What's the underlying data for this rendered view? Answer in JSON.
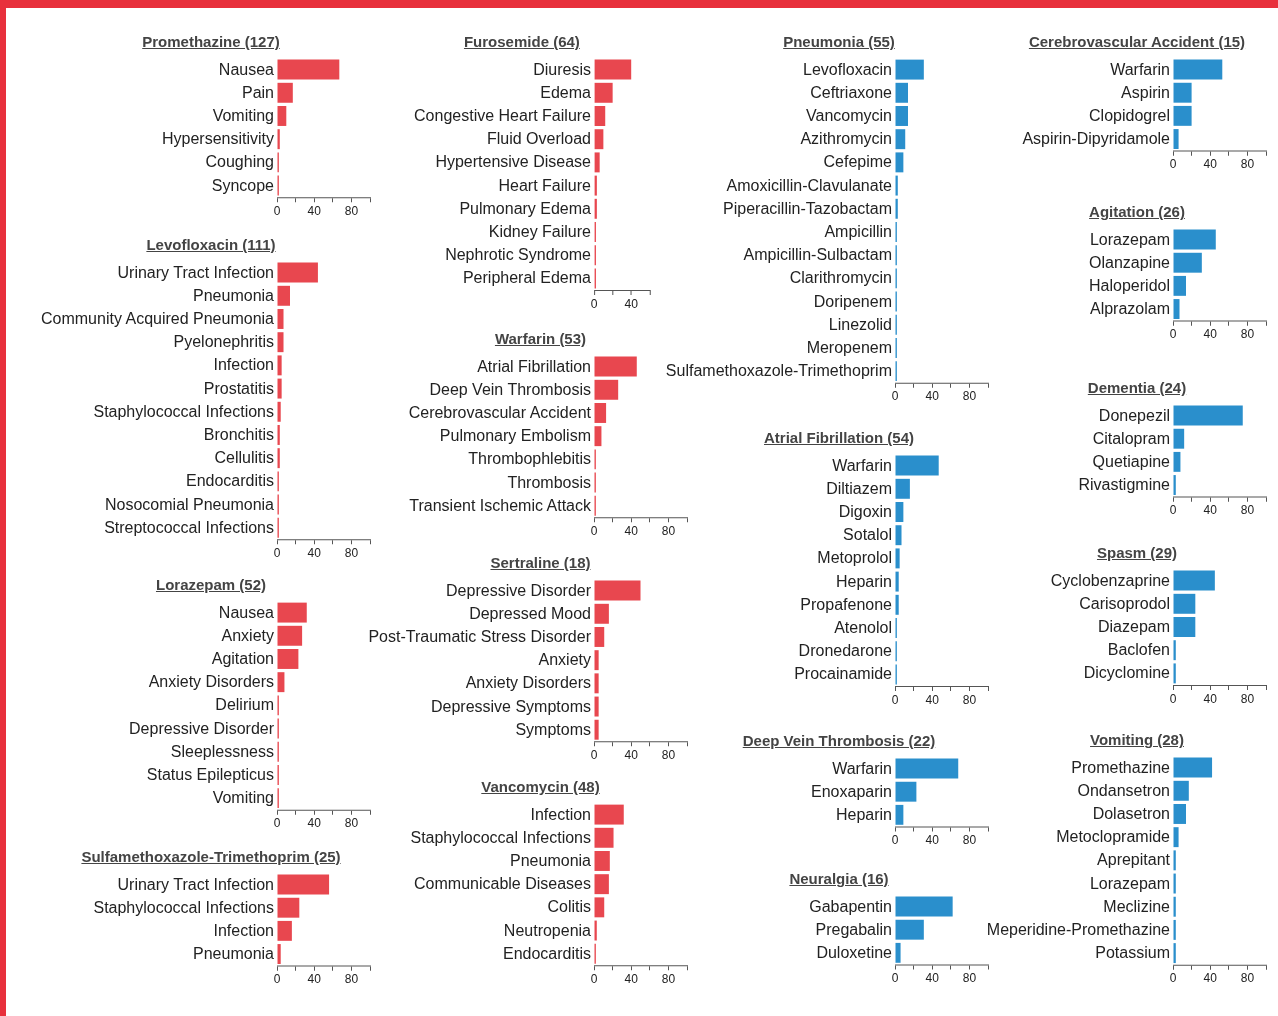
{
  "chart_data": [
    {
      "type": "bar",
      "orientation": "horizontal",
      "title": "Promethazine (127)",
      "categories": [
        "Nausea",
        "Pain",
        "Vomiting",
        "Hypersensitivity",
        "Coughing",
        "Syncope"
      ],
      "values": [
        67,
        17,
        10,
        3,
        2,
        2
      ],
      "color": "#e8474f",
      "xlim": [
        0,
        100
      ],
      "xticks": [
        0,
        {
          "value": 20,
          "label": null
        },
        40,
        {
          "value": 60,
          "label": null
        },
        80,
        {
          "value": 100,
          "label": null
        }
      ]
    },
    {
      "type": "bar",
      "orientation": "horizontal",
      "title": "Levofloxacin (111)",
      "categories": [
        "Urinary Tract Infection",
        "Pneumonia",
        "Community Acquired Pneumonia",
        "Pyelonephritis",
        "Infection",
        "Prostatitis",
        "Staphylococcal Infections",
        "Bronchitis",
        "Cellulitis",
        "Endocarditis",
        "Nosocomial Pneumonia",
        "Streptococcal Infections"
      ],
      "values": [
        44,
        14,
        7,
        7,
        5,
        5,
        4,
        3,
        3,
        2,
        2,
        2
      ],
      "color": "#e8474f",
      "xlim": [
        0,
        100
      ],
      "xticks": [
        0,
        {
          "value": 20,
          "label": null
        },
        40,
        {
          "value": 60,
          "label": null
        },
        80,
        {
          "value": 100,
          "label": null
        }
      ]
    },
    {
      "type": "bar",
      "orientation": "horizontal",
      "title": "Lorazepam (52)",
      "categories": [
        "Nausea",
        "Anxiety",
        "Agitation",
        "Anxiety Disorders",
        "Delirium",
        "Depressive Disorder",
        "Sleeplessness",
        "Status Epilepticus",
        "Vomiting"
      ],
      "values": [
        32,
        27,
        23,
        8,
        2,
        2,
        2,
        2,
        2
      ],
      "color": "#e8474f",
      "xlim": [
        0,
        100
      ],
      "xticks": [
        0,
        {
          "value": 20,
          "label": null
        },
        40,
        {
          "value": 60,
          "label": null
        },
        80,
        {
          "value": 100,
          "label": null
        }
      ]
    },
    {
      "type": "bar",
      "orientation": "horizontal",
      "title": "Sulfamethoxazole-Trimethoprim (25)",
      "categories": [
        "Urinary Tract Infection",
        "Staphylococcal Infections",
        "Infection",
        "Pneumonia"
      ],
      "values": [
        56,
        24,
        16,
        4
      ],
      "color": "#e8474f",
      "xlim": [
        0,
        100
      ],
      "xticks": [
        0,
        {
          "value": 20,
          "label": null
        },
        40,
        {
          "value": 60,
          "label": null
        },
        80,
        {
          "value": 100,
          "label": null
        }
      ]
    },
    {
      "type": "bar",
      "orientation": "horizontal",
      "title": "Furosemide (64)",
      "categories": [
        "Diuresis",
        "Edema",
        "Congestive Heart Failure",
        "Fluid Overload",
        "Hypertensive Disease",
        "Heart Failure",
        "Pulmonary Edema",
        "Kidney Failure",
        "Nephrotic Syndrome",
        "Peripheral Edema"
      ],
      "values": [
        40,
        20,
        12,
        10,
        6,
        3,
        3,
        2,
        2,
        2
      ],
      "color": "#e8474f",
      "xlim": [
        0,
        60
      ],
      "xticks": [
        0,
        {
          "value": 20,
          "label": null
        },
        40,
        {
          "value": 60,
          "label": null
        }
      ]
    },
    {
      "type": "bar",
      "orientation": "horizontal",
      "title": "Warfarin (53)",
      "categories": [
        "Atrial Fibrillation",
        "Deep Vein Thrombosis",
        "Cerebrovascular Accident",
        "Pulmonary Embolism",
        "Thrombophlebitis",
        "Thrombosis",
        "Transient Ischemic Attack"
      ],
      "values": [
        46,
        26,
        13,
        8,
        2,
        2,
        2
      ],
      "color": "#e8474f",
      "xlim": [
        0,
        100
      ],
      "xticks": [
        0,
        {
          "value": 20,
          "label": null
        },
        40,
        {
          "value": 60,
          "label": null
        },
        80,
        {
          "value": 100,
          "label": null
        }
      ]
    },
    {
      "type": "bar",
      "orientation": "horizontal",
      "title": "Sertraline (18)",
      "categories": [
        "Depressive Disorder",
        "Depressed Mood",
        "Post-Traumatic Stress Disorder",
        "Anxiety",
        "Anxiety Disorders",
        "Depressive Symptoms",
        "Symptoms"
      ],
      "values": [
        50,
        16,
        11,
        5,
        5,
        5,
        5
      ],
      "color": "#e8474f",
      "xlim": [
        0,
        100
      ],
      "xticks": [
        0,
        {
          "value": 20,
          "label": null
        },
        40,
        {
          "value": 60,
          "label": null
        },
        80,
        {
          "value": 100,
          "label": null
        }
      ]
    },
    {
      "type": "bar",
      "orientation": "horizontal",
      "title": "Vancomycin (48)",
      "categories": [
        "Infection",
        "Staphylococcal Infections",
        "Pneumonia",
        "Communicable Diseases",
        "Colitis",
        "Neutropenia",
        "Endocarditis"
      ],
      "values": [
        32,
        21,
        17,
        16,
        11,
        3,
        2
      ],
      "color": "#e8474f",
      "xlim": [
        0,
        100
      ],
      "xticks": [
        0,
        {
          "value": 20,
          "label": null
        },
        40,
        {
          "value": 60,
          "label": null
        },
        80,
        {
          "value": 100,
          "label": null
        }
      ]
    },
    {
      "type": "bar",
      "orientation": "horizontal",
      "title": "Pneumonia (55)",
      "categories": [
        "Levofloxacin",
        "Ceftriaxone",
        "Vancomycin",
        "Azithromycin",
        "Cefepime",
        "Amoxicillin-Clavulanate",
        "Piperacillin-Tazobactam",
        "Ampicillin",
        "Ampicillin-Sulbactam",
        "Clarithromycin",
        "Doripenem",
        "Linezolid",
        "Meropenem",
        "Sulfamethoxazole-Trimethoprim"
      ],
      "values": [
        31,
        14,
        14,
        11,
        9,
        3,
        3,
        2,
        2,
        2,
        2,
        2,
        2,
        2
      ],
      "color": "#2a8fcc",
      "xlim": [
        0,
        100
      ],
      "xticks": [
        0,
        {
          "value": 20,
          "label": null
        },
        40,
        {
          "value": 60,
          "label": null
        },
        80,
        {
          "value": 100,
          "label": null
        }
      ]
    },
    {
      "type": "bar",
      "orientation": "horizontal",
      "title": "Atrial Fibrillation (54)",
      "categories": [
        "Warfarin",
        "Diltiazem",
        "Digoxin",
        "Sotalol",
        "Metoprolol",
        "Heparin",
        "Propafenone",
        "Atenolol",
        "Dronedarone",
        "Procainamide"
      ],
      "values": [
        47,
        16,
        9,
        7,
        5,
        4,
        4,
        2,
        2,
        2
      ],
      "color": "#2a8fcc",
      "xlim": [
        0,
        100
      ],
      "xticks": [
        0,
        {
          "value": 20,
          "label": null
        },
        40,
        {
          "value": 60,
          "label": null
        },
        80,
        {
          "value": 100,
          "label": null
        }
      ]
    },
    {
      "type": "bar",
      "orientation": "horizontal",
      "title": "Deep Vein Thrombosis (22)",
      "categories": [
        "Warfarin",
        "Enoxaparin",
        "Heparin"
      ],
      "values": [
        68,
        23,
        9
      ],
      "color": "#2a8fcc",
      "xlim": [
        0,
        100
      ],
      "xticks": [
        0,
        {
          "value": 20,
          "label": null
        },
        40,
        {
          "value": 60,
          "label": null
        },
        80,
        {
          "value": 100,
          "label": null
        }
      ]
    },
    {
      "type": "bar",
      "orientation": "horizontal",
      "title": "Neuralgia (16)",
      "categories": [
        "Gabapentin",
        "Pregabalin",
        "Duloxetine"
      ],
      "values": [
        62,
        31,
        6
      ],
      "color": "#2a8fcc",
      "xlim": [
        0,
        100
      ],
      "xticks": [
        0,
        {
          "value": 20,
          "label": null
        },
        40,
        {
          "value": 60,
          "label": null
        },
        80,
        {
          "value": 100,
          "label": null
        }
      ]
    },
    {
      "type": "bar",
      "orientation": "horizontal",
      "title": "Cerebrovascular Accident (15)",
      "categories": [
        "Warfarin",
        "Aspirin",
        "Clopidogrel",
        "Aspirin-Dipyridamole"
      ],
      "values": [
        53,
        20,
        20,
        6
      ],
      "color": "#2a8fcc",
      "xlim": [
        0,
        100
      ],
      "xticks": [
        0,
        {
          "value": 20,
          "label": null
        },
        40,
        {
          "value": 60,
          "label": null
        },
        80,
        {
          "value": 100,
          "label": null
        }
      ]
    },
    {
      "type": "bar",
      "orientation": "horizontal",
      "title": "Agitation (26)",
      "categories": [
        "Lorazepam",
        "Olanzapine",
        "Haloperidol",
        "Alprazolam"
      ],
      "values": [
        46,
        31,
        14,
        7
      ],
      "color": "#2a8fcc",
      "xlim": [
        0,
        100
      ],
      "xticks": [
        0,
        {
          "value": 20,
          "label": null
        },
        40,
        {
          "value": 60,
          "label": null
        },
        80,
        {
          "value": 100,
          "label": null
        }
      ]
    },
    {
      "type": "bar",
      "orientation": "horizontal",
      "title": "Dementia (24)",
      "categories": [
        "Donepezil",
        "Citalopram",
        "Quetiapine",
        "Rivastigmine"
      ],
      "values": [
        75,
        12,
        8,
        3
      ],
      "color": "#2a8fcc",
      "xlim": [
        0,
        100
      ],
      "xticks": [
        0,
        {
          "value": 20,
          "label": null
        },
        40,
        {
          "value": 60,
          "label": null
        },
        80,
        {
          "value": 100,
          "label": null
        }
      ]
    },
    {
      "type": "bar",
      "orientation": "horizontal",
      "title": "Spasm (29)",
      "categories": [
        "Cyclobenzaprine",
        "Carisoprodol",
        "Diazepam",
        "Baclofen",
        "Dicyclomine"
      ],
      "values": [
        45,
        24,
        24,
        3,
        3
      ],
      "color": "#2a8fcc",
      "xlim": [
        0,
        100
      ],
      "xticks": [
        0,
        {
          "value": 20,
          "label": null
        },
        40,
        {
          "value": 60,
          "label": null
        },
        80,
        {
          "value": 100,
          "label": null
        }
      ]
    },
    {
      "type": "bar",
      "orientation": "horizontal",
      "title": "Vomiting (28)",
      "categories": [
        "Promethazine",
        "Ondansetron",
        "Dolasetron",
        "Metoclopramide",
        "Aprepitant",
        "Lorazepam",
        "Meclizine",
        "Meperidine-Promethazine",
        "Potassium"
      ],
      "values": [
        42,
        17,
        14,
        6,
        3,
        3,
        3,
        3,
        3
      ],
      "color": "#2a8fcc",
      "xlim": [
        0,
        100
      ],
      "xticks": [
        0,
        {
          "value": 20,
          "label": null
        },
        40,
        {
          "value": 60,
          "label": null
        },
        80,
        {
          "value": 100,
          "label": null
        }
      ]
    }
  ]
}
